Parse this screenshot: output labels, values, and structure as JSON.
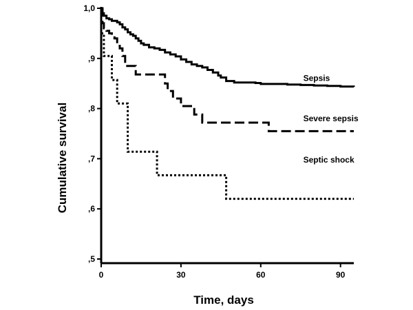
{
  "chart_data": {
    "type": "line",
    "step": true,
    "xlabel": "Time, days",
    "ylabel": "Cumulative survival",
    "xlim": [
      0,
      95
    ],
    "ylim": [
      0.5,
      1.0
    ],
    "x_ticks": [
      0,
      30,
      60,
      90
    ],
    "x_tick_labels": [
      "0",
      "30",
      "60",
      "90"
    ],
    "y_ticks": [
      0.5,
      0.6,
      0.7,
      0.8,
      0.9,
      1.0
    ],
    "y_tick_labels": [
      ",5",
      ",6",
      ",7",
      ",8",
      ",9",
      "1,0"
    ],
    "grid": false,
    "legend": "direct labels at right end of each curve",
    "series": [
      {
        "name": "Sepsis",
        "line_style": "solid",
        "label_at": [
          76,
          0.855
        ],
        "x": [
          0,
          0.5,
          1,
          2,
          3,
          4,
          6,
          7,
          8,
          9,
          10,
          11,
          12,
          13,
          14,
          15,
          16,
          18,
          20,
          22,
          24,
          26,
          28,
          30,
          32,
          34,
          36,
          38,
          40,
          42,
          44,
          45,
          47,
          50,
          55,
          58,
          60,
          65,
          70,
          75,
          80,
          85,
          90,
          95
        ],
        "y": [
          1.0,
          0.99,
          0.985,
          0.98,
          0.978,
          0.975,
          0.972,
          0.968,
          0.962,
          0.958,
          0.952,
          0.948,
          0.945,
          0.94,
          0.935,
          0.93,
          0.927,
          0.922,
          0.92,
          0.917,
          0.912,
          0.908,
          0.904,
          0.898,
          0.893,
          0.888,
          0.885,
          0.882,
          0.877,
          0.872,
          0.866,
          0.862,
          0.855,
          0.852,
          0.852,
          0.851,
          0.849,
          0.849,
          0.848,
          0.847,
          0.846,
          0.845,
          0.844,
          0.843
        ]
      },
      {
        "name": "Severe sepsis",
        "line_style": "dashed",
        "label_at": [
          76,
          0.775
        ],
        "x": [
          0,
          0.5,
          1,
          2,
          3,
          4,
          5,
          6,
          7,
          8,
          9,
          13,
          18,
          23,
          24,
          25,
          27,
          30,
          32,
          35,
          37,
          38,
          40,
          45,
          55,
          62,
          63,
          70,
          80,
          90,
          95
        ],
        "y": [
          1.0,
          0.97,
          0.96,
          0.955,
          0.95,
          0.945,
          0.94,
          0.925,
          0.92,
          0.905,
          0.885,
          0.868,
          0.868,
          0.868,
          0.85,
          0.835,
          0.82,
          0.805,
          0.805,
          0.788,
          0.788,
          0.772,
          0.772,
          0.772,
          0.772,
          0.772,
          0.755,
          0.755,
          0.755,
          0.755,
          0.755
        ]
      },
      {
        "name": "Septic shock",
        "line_style": "dotted",
        "label_at": [
          76,
          0.692
        ],
        "x": [
          0,
          1,
          3,
          4,
          6,
          8,
          10,
          15,
          20,
          21,
          25,
          30,
          40,
          45,
          47,
          50,
          60,
          70,
          80,
          90,
          95
        ],
        "y": [
          0.95,
          0.905,
          0.905,
          0.857,
          0.81,
          0.81,
          0.714,
          0.714,
          0.714,
          0.667,
          0.667,
          0.667,
          0.667,
          0.667,
          0.62,
          0.62,
          0.62,
          0.62,
          0.62,
          0.62,
          0.62
        ]
      }
    ]
  }
}
